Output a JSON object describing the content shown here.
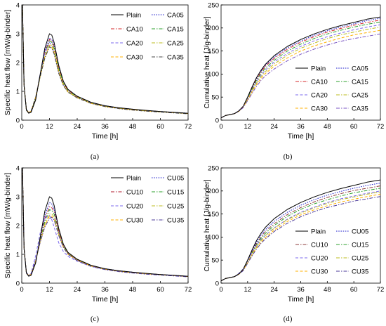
{
  "chart_data": [
    {
      "type": "line",
      "panel_label": "a",
      "xlabel": "Time [h]",
      "ylabel": "Specific heat flow [mW/g-binder]",
      "xlim": [
        0,
        72
      ],
      "ylim": [
        0,
        4
      ],
      "x_ticks": [
        "0",
        "12",
        "24",
        "36",
        "48",
        "60",
        "72"
      ],
      "y_ticks": [
        "0",
        "1",
        "2",
        "3",
        "4"
      ],
      "grid": false,
      "legend_position": "top-right",
      "legend_columns": 2,
      "x": [
        0.3,
        1,
        2,
        3,
        4,
        6,
        8,
        10,
        12,
        13,
        14,
        16,
        18,
        20,
        24,
        30,
        36,
        42,
        48,
        54,
        60,
        66,
        72
      ],
      "series": [
        {
          "name": "Plain",
          "color": "#000000",
          "dash": "solid",
          "values": [
            4.0,
            1.2,
            0.35,
            0.24,
            0.27,
            0.7,
            1.6,
            2.5,
            3.0,
            2.95,
            2.7,
            1.9,
            1.35,
            1.07,
            0.83,
            0.62,
            0.5,
            0.43,
            0.38,
            0.34,
            0.3,
            0.27,
            0.24
          ]
        },
        {
          "name": "CA05",
          "color": "#2222cc",
          "dash": "dot",
          "values": [
            4.0,
            1.2,
            0.35,
            0.25,
            0.28,
            0.72,
            1.6,
            2.4,
            2.85,
            2.8,
            2.6,
            1.85,
            1.32,
            1.05,
            0.82,
            0.61,
            0.5,
            0.43,
            0.38,
            0.33,
            0.3,
            0.27,
            0.24
          ]
        },
        {
          "name": "CA10",
          "color": "#d62728",
          "dash": "dashdot",
          "values": [
            4.0,
            1.2,
            0.35,
            0.25,
            0.28,
            0.72,
            1.55,
            2.35,
            2.8,
            2.75,
            2.55,
            1.8,
            1.3,
            1.04,
            0.81,
            0.6,
            0.49,
            0.42,
            0.37,
            0.33,
            0.3,
            0.26,
            0.23
          ]
        },
        {
          "name": "CA15",
          "color": "#2ca02c",
          "dash": "dashdot",
          "values": [
            4.0,
            1.2,
            0.35,
            0.25,
            0.29,
            0.74,
            1.55,
            2.3,
            2.75,
            2.7,
            2.5,
            1.78,
            1.28,
            1.02,
            0.8,
            0.6,
            0.49,
            0.42,
            0.37,
            0.33,
            0.3,
            0.26,
            0.23
          ]
        },
        {
          "name": "CA20",
          "color": "#7b68ee",
          "dash": "dash",
          "values": [
            4.0,
            1.2,
            0.36,
            0.26,
            0.3,
            0.78,
            1.6,
            2.3,
            2.7,
            2.6,
            2.35,
            1.65,
            1.22,
            0.98,
            0.78,
            0.59,
            0.48,
            0.41,
            0.36,
            0.32,
            0.29,
            0.26,
            0.23
          ]
        },
        {
          "name": "CA25",
          "color": "#bcbd22",
          "dash": "dashdot",
          "values": [
            4.0,
            1.2,
            0.36,
            0.26,
            0.3,
            0.76,
            1.5,
            2.2,
            2.62,
            2.6,
            2.42,
            1.72,
            1.25,
            1.0,
            0.79,
            0.59,
            0.48,
            0.41,
            0.36,
            0.32,
            0.29,
            0.26,
            0.23
          ]
        },
        {
          "name": "CA30",
          "color": "#ffb000",
          "dash": "dash",
          "values": [
            4.0,
            1.2,
            0.36,
            0.27,
            0.31,
            0.8,
            1.55,
            2.2,
            2.6,
            2.55,
            2.35,
            1.66,
            1.22,
            0.98,
            0.78,
            0.58,
            0.47,
            0.41,
            0.36,
            0.32,
            0.29,
            0.26,
            0.23
          ]
        },
        {
          "name": "CA35",
          "color": "#444444",
          "dash": "dashdot",
          "values": [
            4.0,
            1.2,
            0.37,
            0.27,
            0.31,
            0.8,
            1.52,
            2.15,
            2.55,
            2.5,
            2.3,
            1.62,
            1.2,
            0.97,
            0.77,
            0.58,
            0.47,
            0.4,
            0.35,
            0.31,
            0.28,
            0.25,
            0.22
          ]
        }
      ]
    },
    {
      "type": "line",
      "panel_label": "b",
      "xlabel": "Time [h]",
      "ylabel": "Cumulative heat [J/g-binder]",
      "xlim": [
        0,
        72
      ],
      "ylim": [
        0,
        250
      ],
      "x_ticks": [
        "0",
        "12",
        "24",
        "36",
        "48",
        "60",
        "72"
      ],
      "y_ticks": [
        "0",
        "50",
        "100",
        "150",
        "200",
        "250"
      ],
      "grid": false,
      "legend_position": "bottom-right",
      "legend_columns": 2,
      "x": [
        0,
        2,
        4,
        6,
        8,
        10,
        12,
        14,
        16,
        18,
        20,
        24,
        30,
        36,
        42,
        48,
        54,
        60,
        66,
        72
      ],
      "series": [
        {
          "name": "Plain",
          "color": "#000000",
          "dash": "solid",
          "values": [
            5,
            10,
            12,
            14,
            20,
            30,
            50,
            72,
            92,
            108,
            121,
            140,
            160,
            175,
            187,
            197,
            205,
            212,
            219,
            224
          ]
        },
        {
          "name": "CA05",
          "color": "#2222cc",
          "dash": "dot",
          "values": [
            5,
            10,
            12,
            14,
            20,
            30,
            49,
            71,
            90,
            106,
            119,
            137,
            157,
            172,
            184,
            194,
            202,
            209,
            216,
            221
          ]
        },
        {
          "name": "CA10",
          "color": "#d62728",
          "dash": "dashdot",
          "values": [
            5,
            10,
            12,
            14,
            20,
            30,
            48,
            69,
            88,
            104,
            117,
            134,
            154,
            169,
            181,
            191,
            199,
            206,
            212,
            217
          ]
        },
        {
          "name": "CA15",
          "color": "#2ca02c",
          "dash": "dashdot",
          "values": [
            5,
            10,
            12,
            14,
            20,
            29,
            47,
            67,
            86,
            101,
            113,
            130,
            150,
            165,
            177,
            187,
            195,
            202,
            208,
            213
          ]
        },
        {
          "name": "CA20",
          "color": "#7b68ee",
          "dash": "dash",
          "values": [
            5,
            10,
            12,
            14,
            20,
            29,
            46,
            65,
            83,
            97,
            109,
            126,
            145,
            160,
            172,
            181,
            189,
            196,
            202,
            207
          ]
        },
        {
          "name": "CA25",
          "color": "#bcbd22",
          "dash": "dashdot",
          "values": [
            5,
            10,
            12,
            14,
            19,
            28,
            45,
            63,
            80,
            94,
            105,
            122,
            141,
            156,
            167,
            177,
            185,
            191,
            197,
            202
          ]
        },
        {
          "name": "CA30",
          "color": "#ffb000",
          "dash": "dash",
          "values": [
            5,
            10,
            12,
            14,
            19,
            28,
            44,
            61,
            77,
            90,
            101,
            117,
            135,
            150,
            161,
            170,
            178,
            185,
            190,
            195
          ]
        },
        {
          "name": "CA35",
          "color": "#7b57c4",
          "dash": "dashdot",
          "values": [
            5,
            10,
            12,
            14,
            19,
            27,
            42,
            58,
            73,
            86,
            96,
            111,
            129,
            143,
            154,
            163,
            171,
            177,
            182,
            187
          ]
        }
      ]
    },
    {
      "type": "line",
      "panel_label": "c",
      "xlabel": "Time [h]",
      "ylabel": "Specific heat flow [mW/g-binder]",
      "xlim": [
        0,
        72
      ],
      "ylim": [
        0,
        4
      ],
      "x_ticks": [
        "0",
        "12",
        "24",
        "36",
        "48",
        "60",
        "72"
      ],
      "y_ticks": [
        "0",
        "1",
        "2",
        "3",
        "4"
      ],
      "grid": false,
      "legend_position": "top-right",
      "legend_columns": 2,
      "x": [
        0.3,
        1,
        2,
        3,
        4,
        6,
        8,
        10,
        12,
        13,
        14,
        16,
        18,
        20,
        24,
        30,
        36,
        42,
        48,
        54,
        60,
        66,
        72
      ],
      "series": [
        {
          "name": "Plain",
          "color": "#000000",
          "dash": "solid",
          "values": [
            4.0,
            1.2,
            0.35,
            0.24,
            0.27,
            0.7,
            1.6,
            2.5,
            3.0,
            2.95,
            2.7,
            1.9,
            1.35,
            1.07,
            0.83,
            0.62,
            0.5,
            0.43,
            0.38,
            0.34,
            0.3,
            0.27,
            0.24
          ]
        },
        {
          "name": "CU05",
          "color": "#2222cc",
          "dash": "dot",
          "values": [
            4.0,
            1.2,
            0.35,
            0.25,
            0.28,
            0.72,
            1.55,
            2.35,
            2.8,
            2.75,
            2.58,
            1.85,
            1.33,
            1.06,
            0.82,
            0.61,
            0.5,
            0.43,
            0.38,
            0.33,
            0.3,
            0.27,
            0.24
          ]
        },
        {
          "name": "CU10",
          "color": "#b2182b",
          "dash": "dashdot",
          "values": [
            4.0,
            1.2,
            0.35,
            0.25,
            0.28,
            0.73,
            1.5,
            2.25,
            2.65,
            2.62,
            2.48,
            1.8,
            1.3,
            1.04,
            0.81,
            0.6,
            0.49,
            0.42,
            0.37,
            0.33,
            0.3,
            0.26,
            0.23
          ]
        },
        {
          "name": "CU15",
          "color": "#2ca02c",
          "dash": "dashdot",
          "values": [
            4.0,
            1.2,
            0.35,
            0.26,
            0.29,
            0.74,
            1.48,
            2.15,
            2.55,
            2.52,
            2.4,
            1.75,
            1.28,
            1.03,
            0.8,
            0.6,
            0.49,
            0.42,
            0.37,
            0.33,
            0.3,
            0.26,
            0.23
          ]
        },
        {
          "name": "CU20",
          "color": "#7b68ee",
          "dash": "dash",
          "values": [
            4.0,
            1.2,
            0.36,
            0.27,
            0.33,
            0.95,
            1.75,
            2.25,
            2.35,
            2.2,
            1.95,
            1.4,
            1.1,
            0.93,
            0.76,
            0.58,
            0.48,
            0.41,
            0.36,
            0.32,
            0.29,
            0.26,
            0.23
          ]
        },
        {
          "name": "CU25",
          "color": "#bcbd22",
          "dash": "dashdot",
          "values": [
            4.0,
            1.2,
            0.36,
            0.26,
            0.3,
            0.76,
            1.45,
            2.05,
            2.4,
            2.4,
            2.3,
            1.72,
            1.26,
            1.02,
            0.8,
            0.59,
            0.48,
            0.41,
            0.36,
            0.32,
            0.29,
            0.26,
            0.23
          ]
        },
        {
          "name": "CU30",
          "color": "#ffb000",
          "dash": "dash",
          "values": [
            4.0,
            1.2,
            0.36,
            0.27,
            0.31,
            0.78,
            1.42,
            2.0,
            2.32,
            2.32,
            2.22,
            1.66,
            1.24,
            1.0,
            0.79,
            0.59,
            0.48,
            0.41,
            0.36,
            0.32,
            0.29,
            0.26,
            0.23
          ]
        },
        {
          "name": "CU35",
          "color": "#4b3a9a",
          "dash": "dashdot",
          "values": [
            4.0,
            1.2,
            0.37,
            0.27,
            0.32,
            0.8,
            1.42,
            1.95,
            2.25,
            2.28,
            2.2,
            1.65,
            1.24,
            1.0,
            0.78,
            0.58,
            0.47,
            0.4,
            0.35,
            0.31,
            0.28,
            0.25,
            0.22
          ]
        }
      ]
    },
    {
      "type": "line",
      "panel_label": "d",
      "xlabel": "Time [h]",
      "ylabel": "Cumulative heat [J/g-binder]",
      "xlim": [
        0,
        72
      ],
      "ylim": [
        0,
        250
      ],
      "x_ticks": [
        "0",
        "12",
        "24",
        "36",
        "48",
        "60",
        "72"
      ],
      "y_ticks": [
        "0",
        "50",
        "100",
        "150",
        "200",
        "250"
      ],
      "grid": false,
      "legend_position": "bottom-right",
      "legend_columns": 2,
      "x": [
        0,
        2,
        4,
        6,
        8,
        10,
        12,
        14,
        16,
        18,
        20,
        24,
        30,
        36,
        42,
        48,
        54,
        60,
        66,
        72
      ],
      "series": [
        {
          "name": "Plain",
          "color": "#000000",
          "dash": "solid",
          "values": [
            5,
            10,
            12,
            14,
            20,
            30,
            50,
            72,
            92,
            108,
            121,
            140,
            160,
            175,
            187,
            197,
            205,
            212,
            219,
            224
          ]
        },
        {
          "name": "CU05",
          "color": "#2222cc",
          "dash": "dot",
          "values": [
            5,
            10,
            12,
            14,
            20,
            30,
            49,
            70,
            89,
            104,
            116,
            134,
            154,
            169,
            181,
            191,
            199,
            206,
            212,
            217
          ]
        },
        {
          "name": "CU10",
          "color": "#8b3a3a",
          "dash": "dashdot",
          "values": [
            5,
            10,
            12,
            14,
            20,
            29,
            48,
            68,
            86,
            100,
            112,
            129,
            149,
            164,
            176,
            186,
            194,
            201,
            206,
            211
          ]
        },
        {
          "name": "CU15",
          "color": "#2ca02c",
          "dash": "dashdot",
          "values": [
            5,
            10,
            12,
            14,
            20,
            29,
            47,
            66,
            83,
            97,
            108,
            125,
            145,
            160,
            172,
            181,
            189,
            196,
            201,
            206
          ]
        },
        {
          "name": "CU20",
          "color": "#7b68ee",
          "dash": "dash",
          "values": [
            5,
            10,
            12,
            14,
            21,
            31,
            48,
            66,
            82,
            94,
            104,
            120,
            139,
            154,
            165,
            175,
            183,
            189,
            195,
            200
          ]
        },
        {
          "name": "CU25",
          "color": "#bcbd22",
          "dash": "dashdot",
          "values": [
            5,
            10,
            12,
            14,
            19,
            28,
            45,
            63,
            79,
            92,
            103,
            119,
            138,
            152,
            163,
            173,
            181,
            187,
            193,
            198
          ]
        },
        {
          "name": "CU30",
          "color": "#ffb000",
          "dash": "dash",
          "values": [
            5,
            10,
            12,
            14,
            19,
            28,
            44,
            61,
            77,
            89,
            99,
            115,
            134,
            148,
            159,
            168,
            176,
            182,
            188,
            193
          ]
        },
        {
          "name": "CU35",
          "color": "#4b3a9a",
          "dash": "dashdot",
          "values": [
            5,
            10,
            12,
            14,
            19,
            27,
            43,
            59,
            74,
            86,
            96,
            112,
            130,
            144,
            155,
            164,
            171,
            178,
            183,
            188
          ]
        }
      ]
    }
  ],
  "captions": {
    "a": "(a)",
    "b": "(b)",
    "c": "(c)",
    "d": "(d)"
  }
}
